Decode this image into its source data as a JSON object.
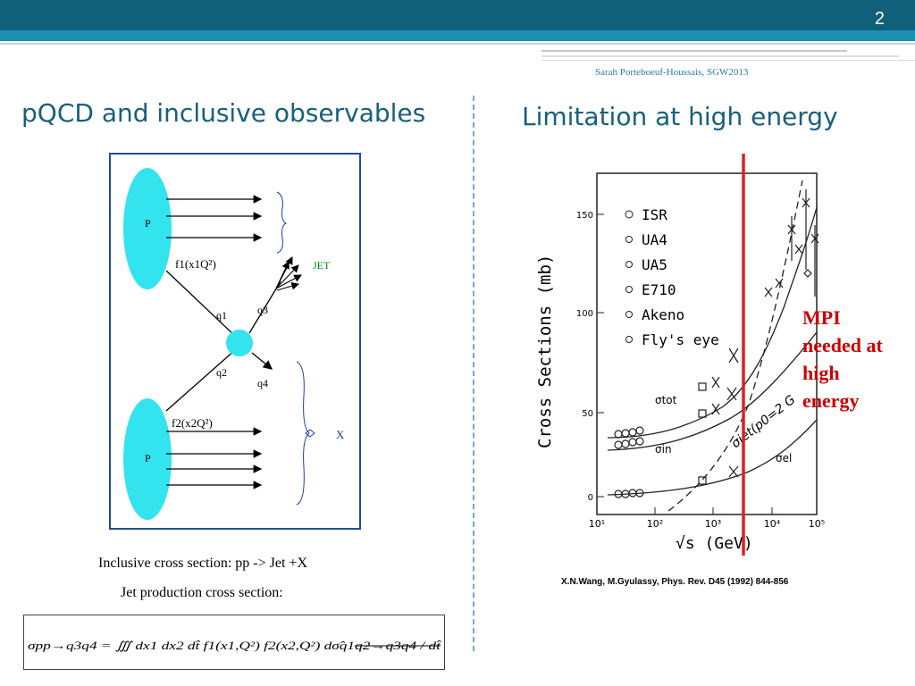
{
  "slide": {
    "page_number": "2",
    "author": "Sarah Porteboeuf-Houssais, SGW2013",
    "left_title": "pQCD and inclusive observables",
    "right_title": "Limitation at high energy"
  },
  "diagram": {
    "proton_top": "P",
    "proton_bottom": "P",
    "pdf1": "f1(x1Q²)",
    "pdf2": "f2(x2Q²)",
    "q1": "q1",
    "q2": "q2",
    "q3": "q3",
    "q4": "q4",
    "jet": "JET",
    "x_label": "X"
  },
  "captions": {
    "inclusive": "Inclusive cross section: pp -> Jet +X",
    "jet_production": "Jet production cross section:"
  },
  "formula": {
    "text": "σpp→q3q4 = ∭ dx1 dx2 dt̂ f1(x1,Q²) f2(x2,Q²) dσ̂q1q2→q3q4 / dt̂"
  },
  "plot": {
    "y_axis_label": "Cross Sections (mb)",
    "x_axis_label": "√s (GeV)",
    "y_ticks": [
      "0",
      "50",
      "100",
      "150"
    ],
    "x_ticks": [
      "10¹",
      "10²",
      "10³",
      "10⁴",
      "10⁵"
    ],
    "legend": [
      "ISR",
      "UA4",
      "UA5",
      "E710",
      "Akeno",
      "Fly's eye"
    ],
    "curve_labels": [
      "σtot",
      "σin",
      "σel",
      "σjet(p0=2 G"
    ],
    "mpi_text": "MPI needed at high energy",
    "accent_color": "#e02020"
  },
  "reference": "X.N.Wang, M.Gyulassy, Phys. Rev. D45 (1992) 844-856"
}
